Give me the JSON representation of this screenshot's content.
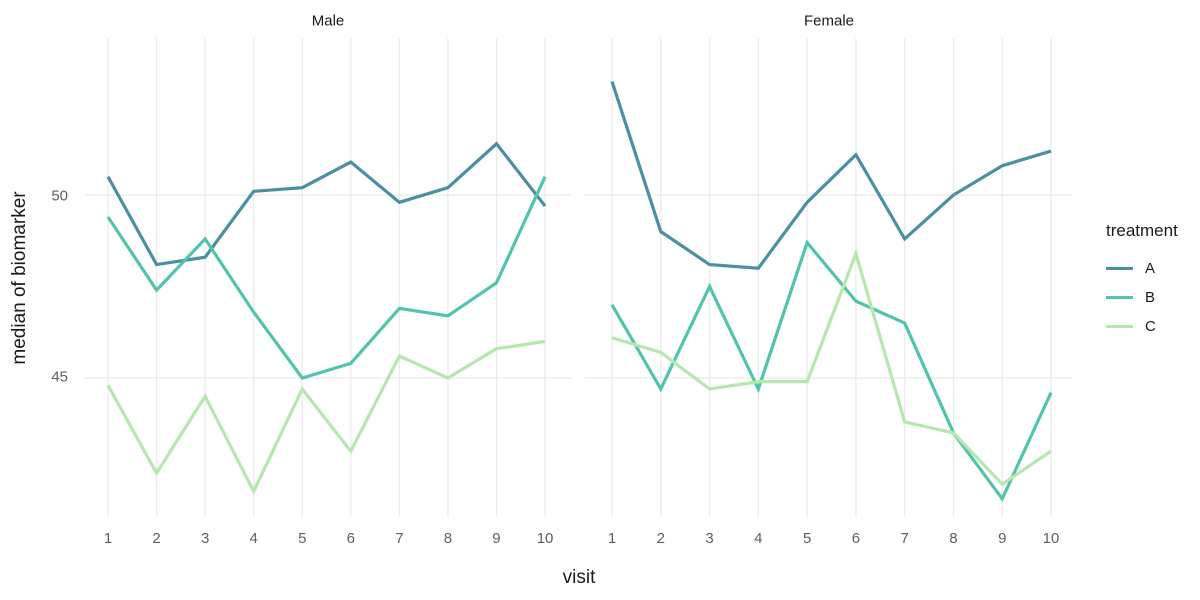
{
  "chart_data": {
    "type": "line",
    "title": "",
    "xlabel": "visit",
    "ylabel": "median of biomarker",
    "x": [
      1,
      2,
      3,
      4,
      5,
      6,
      7,
      8,
      9,
      10
    ],
    "x_tick_labels": [
      "1",
      "2",
      "3",
      "4",
      "5",
      "6",
      "7",
      "8",
      "9",
      "10"
    ],
    "yticks": [
      45,
      50
    ],
    "y_tick_labels": [
      "45",
      "50"
    ],
    "ylim": [
      41.2,
      54.3
    ],
    "grid": "major gridlines only, light gray on white background",
    "legend": {
      "title": "treatment",
      "position": "right",
      "entries": [
        "A",
        "B",
        "C"
      ]
    },
    "colors": {
      "A": "#4a8fa2",
      "B": "#52c3ad",
      "C": "#b5e7ae",
      "gridline": "#ebebeb",
      "tick_text": "#5f5f5f",
      "title_text": "#1a1a1a"
    },
    "facets": [
      {
        "label": "Male",
        "series": [
          {
            "name": "A",
            "values": [
              50.5,
              48.1,
              48.3,
              50.1,
              50.2,
              50.9,
              49.8,
              50.2,
              51.4,
              49.7
            ]
          },
          {
            "name": "B",
            "values": [
              49.4,
              47.4,
              48.8,
              46.8,
              45.0,
              45.4,
              46.9,
              46.7,
              47.6,
              50.5
            ]
          },
          {
            "name": "C",
            "values": [
              44.8,
              42.4,
              44.5,
              41.9,
              44.7,
              43.0,
              45.6,
              45.0,
              45.8,
              46.0
            ]
          }
        ]
      },
      {
        "label": "Female",
        "series": [
          {
            "name": "A",
            "values": [
              53.1,
              49.0,
              48.1,
              48.0,
              49.8,
              51.1,
              48.8,
              50.0,
              50.8,
              51.2
            ]
          },
          {
            "name": "B",
            "values": [
              47.0,
              44.7,
              47.5,
              44.7,
              48.7,
              47.1,
              46.5,
              43.5,
              41.7,
              44.6
            ]
          },
          {
            "name": "C",
            "values": [
              46.1,
              45.7,
              44.7,
              44.9,
              44.9,
              48.4,
              43.8,
              43.5,
              42.1,
              43.0
            ]
          }
        ]
      }
    ]
  }
}
